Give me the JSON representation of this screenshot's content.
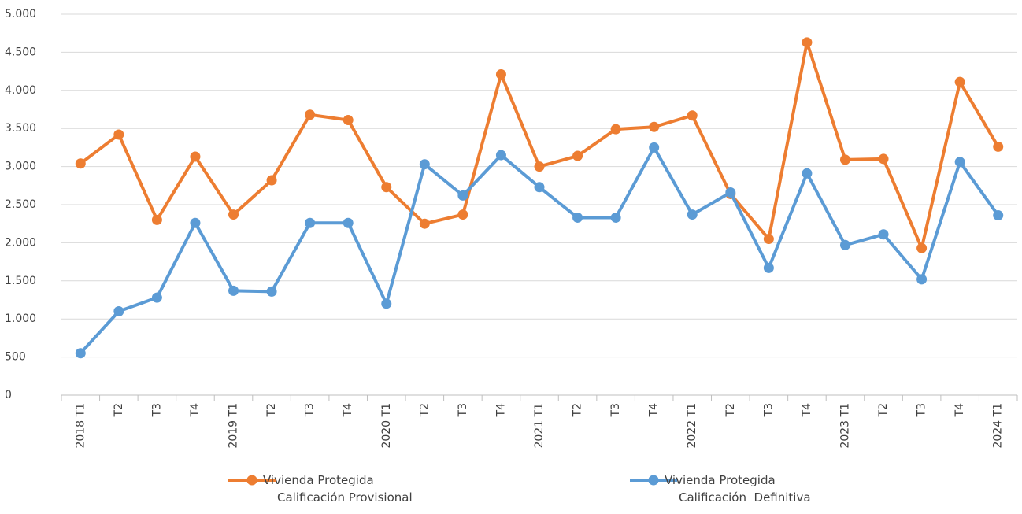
{
  "chart_data": {
    "type": "line",
    "categories": [
      "2018 T1",
      "T2",
      "T3",
      "T4",
      "2019 T1",
      "T2",
      "T3",
      "T4",
      "2020 T1",
      "T2",
      "T3",
      "T4",
      "2021 T1",
      "T2",
      "T3",
      "T4",
      "2022 T1",
      "T2",
      "T3",
      "T4",
      "2023 T1",
      "T2",
      "T3",
      "T4",
      "2024 T1"
    ],
    "series": [
      {
        "name": "Vivienda Protegida\nCalificación Provisional",
        "color": "#ed7d31",
        "values": [
          3040,
          3420,
          2300,
          3130,
          2370,
          2820,
          3680,
          3610,
          2730,
          2250,
          2370,
          4210,
          3000,
          3140,
          3490,
          3520,
          3670,
          2640,
          2050,
          4630,
          3090,
          3100,
          1930,
          4110,
          3260
        ]
      },
      {
        "name": "Vivienda Protegida\nCalificación  Definitiva",
        "color": "#5b9bd5",
        "values": [
          550,
          1100,
          1280,
          2260,
          1370,
          1360,
          2260,
          2260,
          1200,
          3030,
          2620,
          3150,
          2730,
          2330,
          2330,
          3250,
          2370,
          2660,
          1670,
          2910,
          1970,
          2110,
          1520,
          3060,
          2360
        ]
      }
    ],
    "ylim": [
      0,
      5000
    ],
    "yticks": [
      0,
      500,
      {
        "value": 1000,
        "label": "1.000"
      },
      {
        "value": 1500,
        "label": "1.500"
      },
      {
        "value": 2000,
        "label": "2.000"
      },
      {
        "value": 2500,
        "label": "2.500"
      },
      {
        "value": 3000,
        "label": "3.000"
      },
      {
        "value": 3500,
        "label": "3.500"
      },
      {
        "value": 4000,
        "label": "4.000"
      },
      {
        "value": 4500,
        "label": "4.500"
      },
      {
        "value": 5000,
        "label": "5.000"
      }
    ],
    "grid": true,
    "legend": "bottom"
  }
}
